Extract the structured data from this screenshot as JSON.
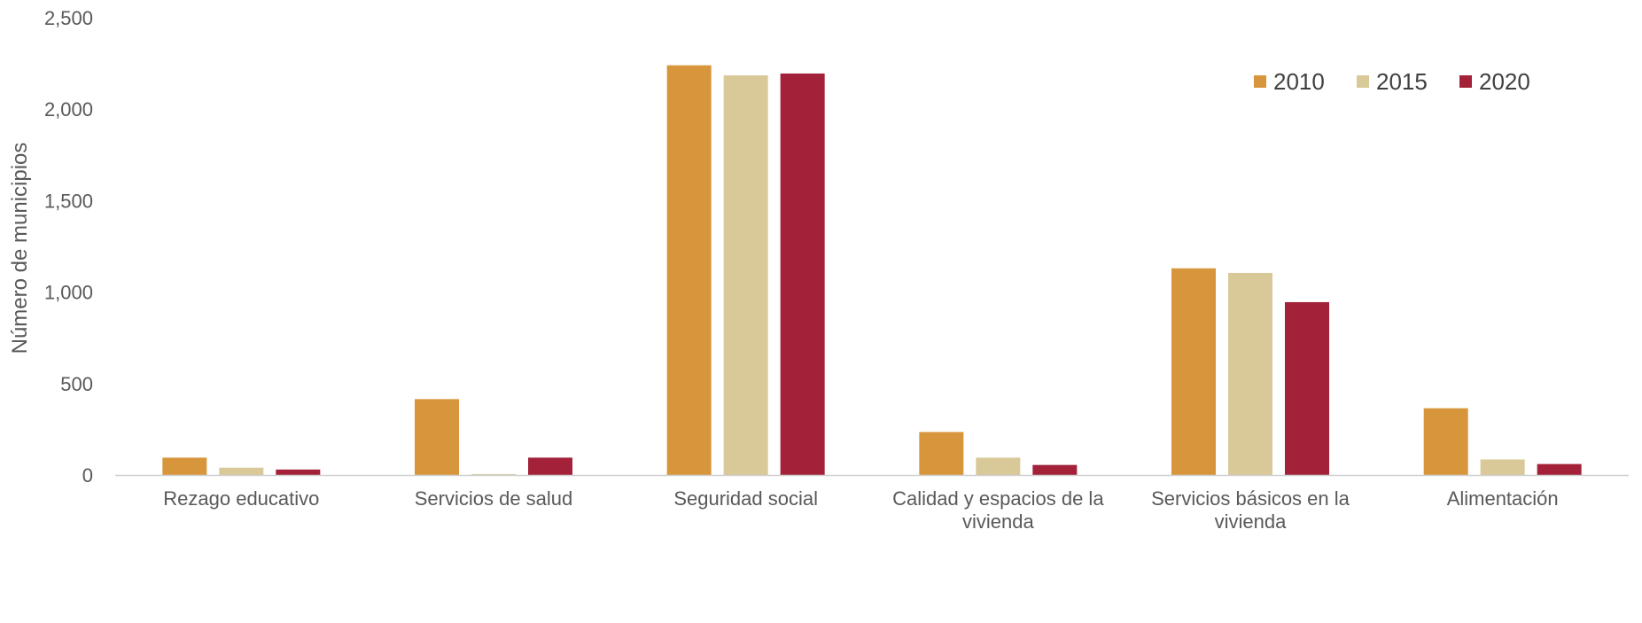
{
  "chart_data": {
    "type": "bar",
    "title": "",
    "xlabel": "",
    "ylabel": "Número de municipios",
    "ylim": [
      0,
      2500
    ],
    "yticks": [
      {
        "value": 0,
        "label": "0"
      },
      {
        "value": 500,
        "label": "500"
      },
      {
        "value": 1000,
        "label": "1,000"
      },
      {
        "value": 1500,
        "label": "1,500"
      },
      {
        "value": 2000,
        "label": "2,000"
      },
      {
        "value": 2500,
        "label": "2,500"
      }
    ],
    "grid": false,
    "legend_position": "top-right",
    "categories": [
      [
        "Rezago educativo"
      ],
      [
        "Servicios de salud"
      ],
      [
        "Seguridad social"
      ],
      [
        "Calidad y espacios de la",
        "vivienda"
      ],
      [
        "Servicios básicos en la",
        "vivienda"
      ],
      [
        "Alimentación"
      ]
    ],
    "series": [
      {
        "name": "2010",
        "color": "#D8963C",
        "values": [
          95,
          415,
          2240,
          235,
          1130,
          365
        ]
      },
      {
        "name": "2015",
        "color": "#D9C999",
        "values": [
          40,
          5,
          2185,
          95,
          1105,
          85
        ]
      },
      {
        "name": "2020",
        "color": "#A3223A",
        "values": [
          30,
          95,
          2195,
          55,
          945,
          60
        ]
      }
    ]
  }
}
